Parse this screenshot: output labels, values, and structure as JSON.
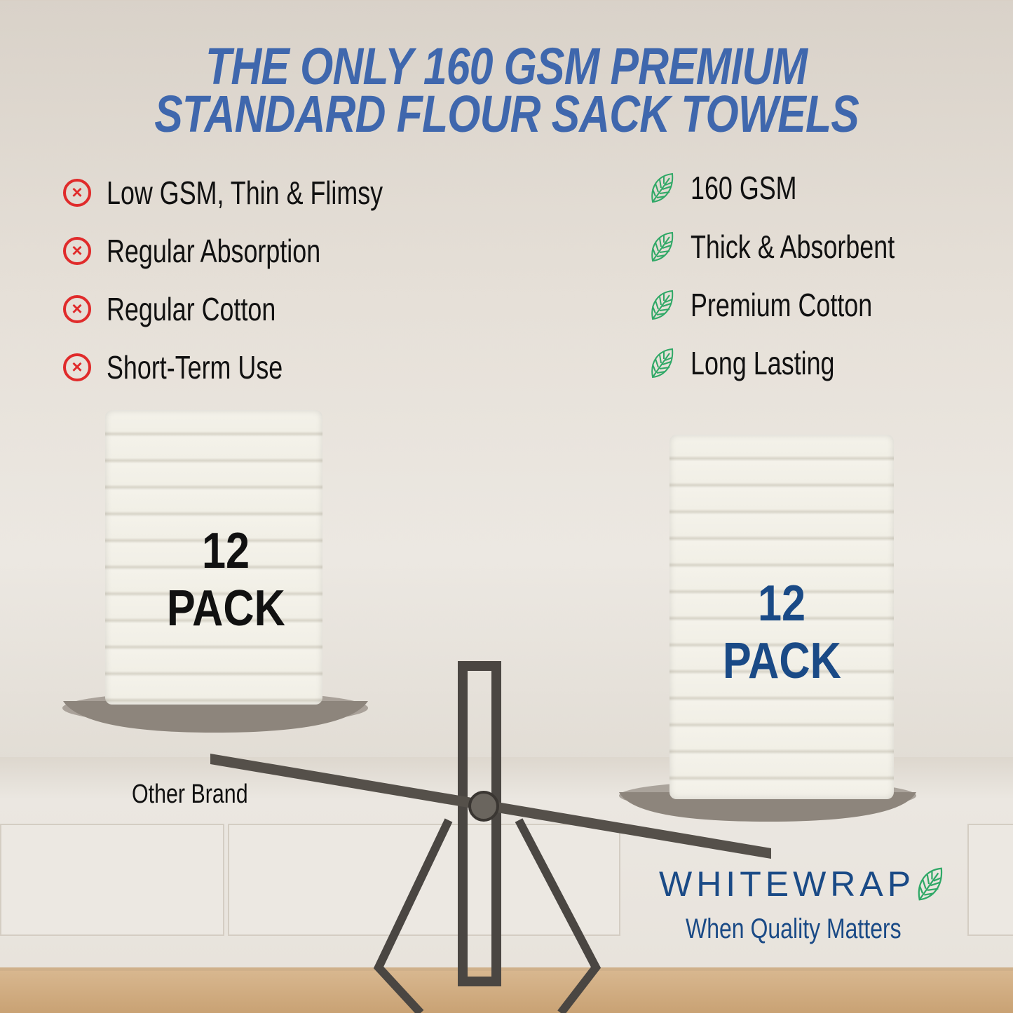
{
  "headline": {
    "line1": "THE ONLY 160 GSM PREMIUM",
    "line2": "STANDARD FLOUR SACK TOWELS"
  },
  "other_brand": {
    "features": [
      {
        "icon": "x-circle-icon",
        "text": "Low GSM, Thin & Flimsy"
      },
      {
        "icon": "x-circle-icon",
        "text": "Regular Absorption"
      },
      {
        "icon": "x-circle-icon",
        "text": "Regular Cotton"
      },
      {
        "icon": "x-circle-icon",
        "text": "Short-Term Use"
      }
    ],
    "pack_number": "12",
    "pack_label": "PACK",
    "label": "Other Brand"
  },
  "whitewrap": {
    "features": [
      {
        "icon": "leaf-icon",
        "text": "160 GSM"
      },
      {
        "icon": "leaf-icon",
        "text": "Thick & Absorbent"
      },
      {
        "icon": "leaf-icon",
        "text": "Premium Cotton"
      },
      {
        "icon": "leaf-icon",
        "text": "Long Lasting"
      }
    ],
    "pack_number": "12",
    "pack_label": "PACK"
  },
  "brand": {
    "name": "WHITEWRAP",
    "tagline": "When Quality Matters"
  },
  "colors": {
    "headline": "#3f67ad",
    "negative": "#e02b2b",
    "positive": "#2fa866",
    "brand": "#1a4a86"
  }
}
